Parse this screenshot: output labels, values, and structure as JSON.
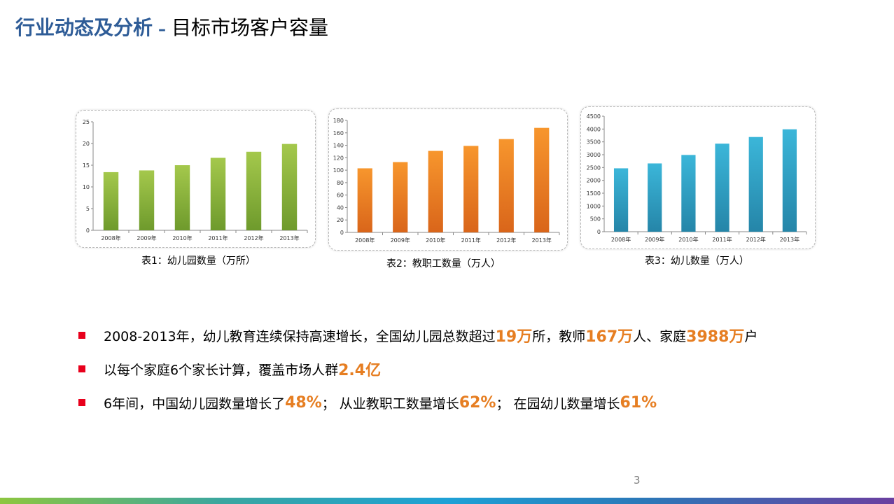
{
  "header": {
    "title_main": "行业动态及分析",
    "title_sep": "–",
    "title_sub": "目标市场客户容量"
  },
  "chart_data": [
    {
      "type": "bar",
      "categories": [
        "2008年",
        "2009年",
        "2010年",
        "2011年",
        "2012年",
        "2013年"
      ],
      "values": [
        13.4,
        13.8,
        15.0,
        16.7,
        18.1,
        19.9
      ],
      "yticks": [
        "0",
        "5",
        "10",
        "15",
        "20",
        "25"
      ],
      "ylim": [
        0,
        25
      ],
      "caption": "表1：幼儿园数量（万所）",
      "color_top": "#a4c84c",
      "color_bottom": "#6e9a2c"
    },
    {
      "type": "bar",
      "categories": [
        "2008年",
        "2009年",
        "2010年",
        "2011年",
        "2012年",
        "2013年"
      ],
      "values": [
        103,
        113,
        131,
        139,
        150,
        168
      ],
      "yticks": [
        "0",
        "20",
        "40",
        "60",
        "80",
        "100",
        "120",
        "140",
        "160",
        "180"
      ],
      "ylim": [
        0,
        180
      ],
      "caption": "表2：教职工数量（万人）",
      "color_top": "#f7962d",
      "color_bottom": "#d9651a"
    },
    {
      "type": "bar",
      "categories": [
        "2008年",
        "2009年",
        "2010年",
        "2011年",
        "2012年",
        "2013年"
      ],
      "values": [
        2470,
        2660,
        2990,
        3430,
        3690,
        3990
      ],
      "yticks": [
        "0",
        "500",
        "1000",
        "1500",
        "2000",
        "2500",
        "3000",
        "3500",
        "4000",
        "4500"
      ],
      "ylim": [
        0,
        4500
      ],
      "caption": "表3：幼儿数量（万人）",
      "color_top": "#3bb6d9",
      "color_bottom": "#2585a8"
    }
  ],
  "bullets": [
    {
      "parts": [
        {
          "text": "2008-2013年，幼儿教育连续保持高速增长，全国幼儿园总数超过",
          "hl": false
        },
        {
          "text": "19万",
          "hl": true
        },
        {
          "text": "所，教师",
          "hl": false
        },
        {
          "text": "167万",
          "hl": true
        },
        {
          "text": "人、家庭",
          "hl": false
        },
        {
          "text": "3988万",
          "hl": true
        },
        {
          "text": "户",
          "hl": false
        }
      ]
    },
    {
      "parts": [
        {
          "text": "以每个家庭6个家长计算，覆盖市场人群",
          "hl": false
        },
        {
          "text": "2.4亿",
          "hl": true
        }
      ]
    },
    {
      "parts": [
        {
          "text": "6年间，中国幼儿园数量增长了 ",
          "hl": false
        },
        {
          "text": "48%",
          "hl": true
        },
        {
          "text": "；  从业教职工数量增长 ",
          "hl": false
        },
        {
          "text": "62%",
          "hl": true
        },
        {
          "text": "；  在园幼儿数量增长 ",
          "hl": false
        },
        {
          "text": "61%",
          "hl": true
        }
      ]
    }
  ],
  "footer": {
    "page_number": "3"
  },
  "colors": {
    "accent_blue": "#2e5c97",
    "highlight_orange": "#e67e22",
    "bullet_red": "#e8001c"
  }
}
